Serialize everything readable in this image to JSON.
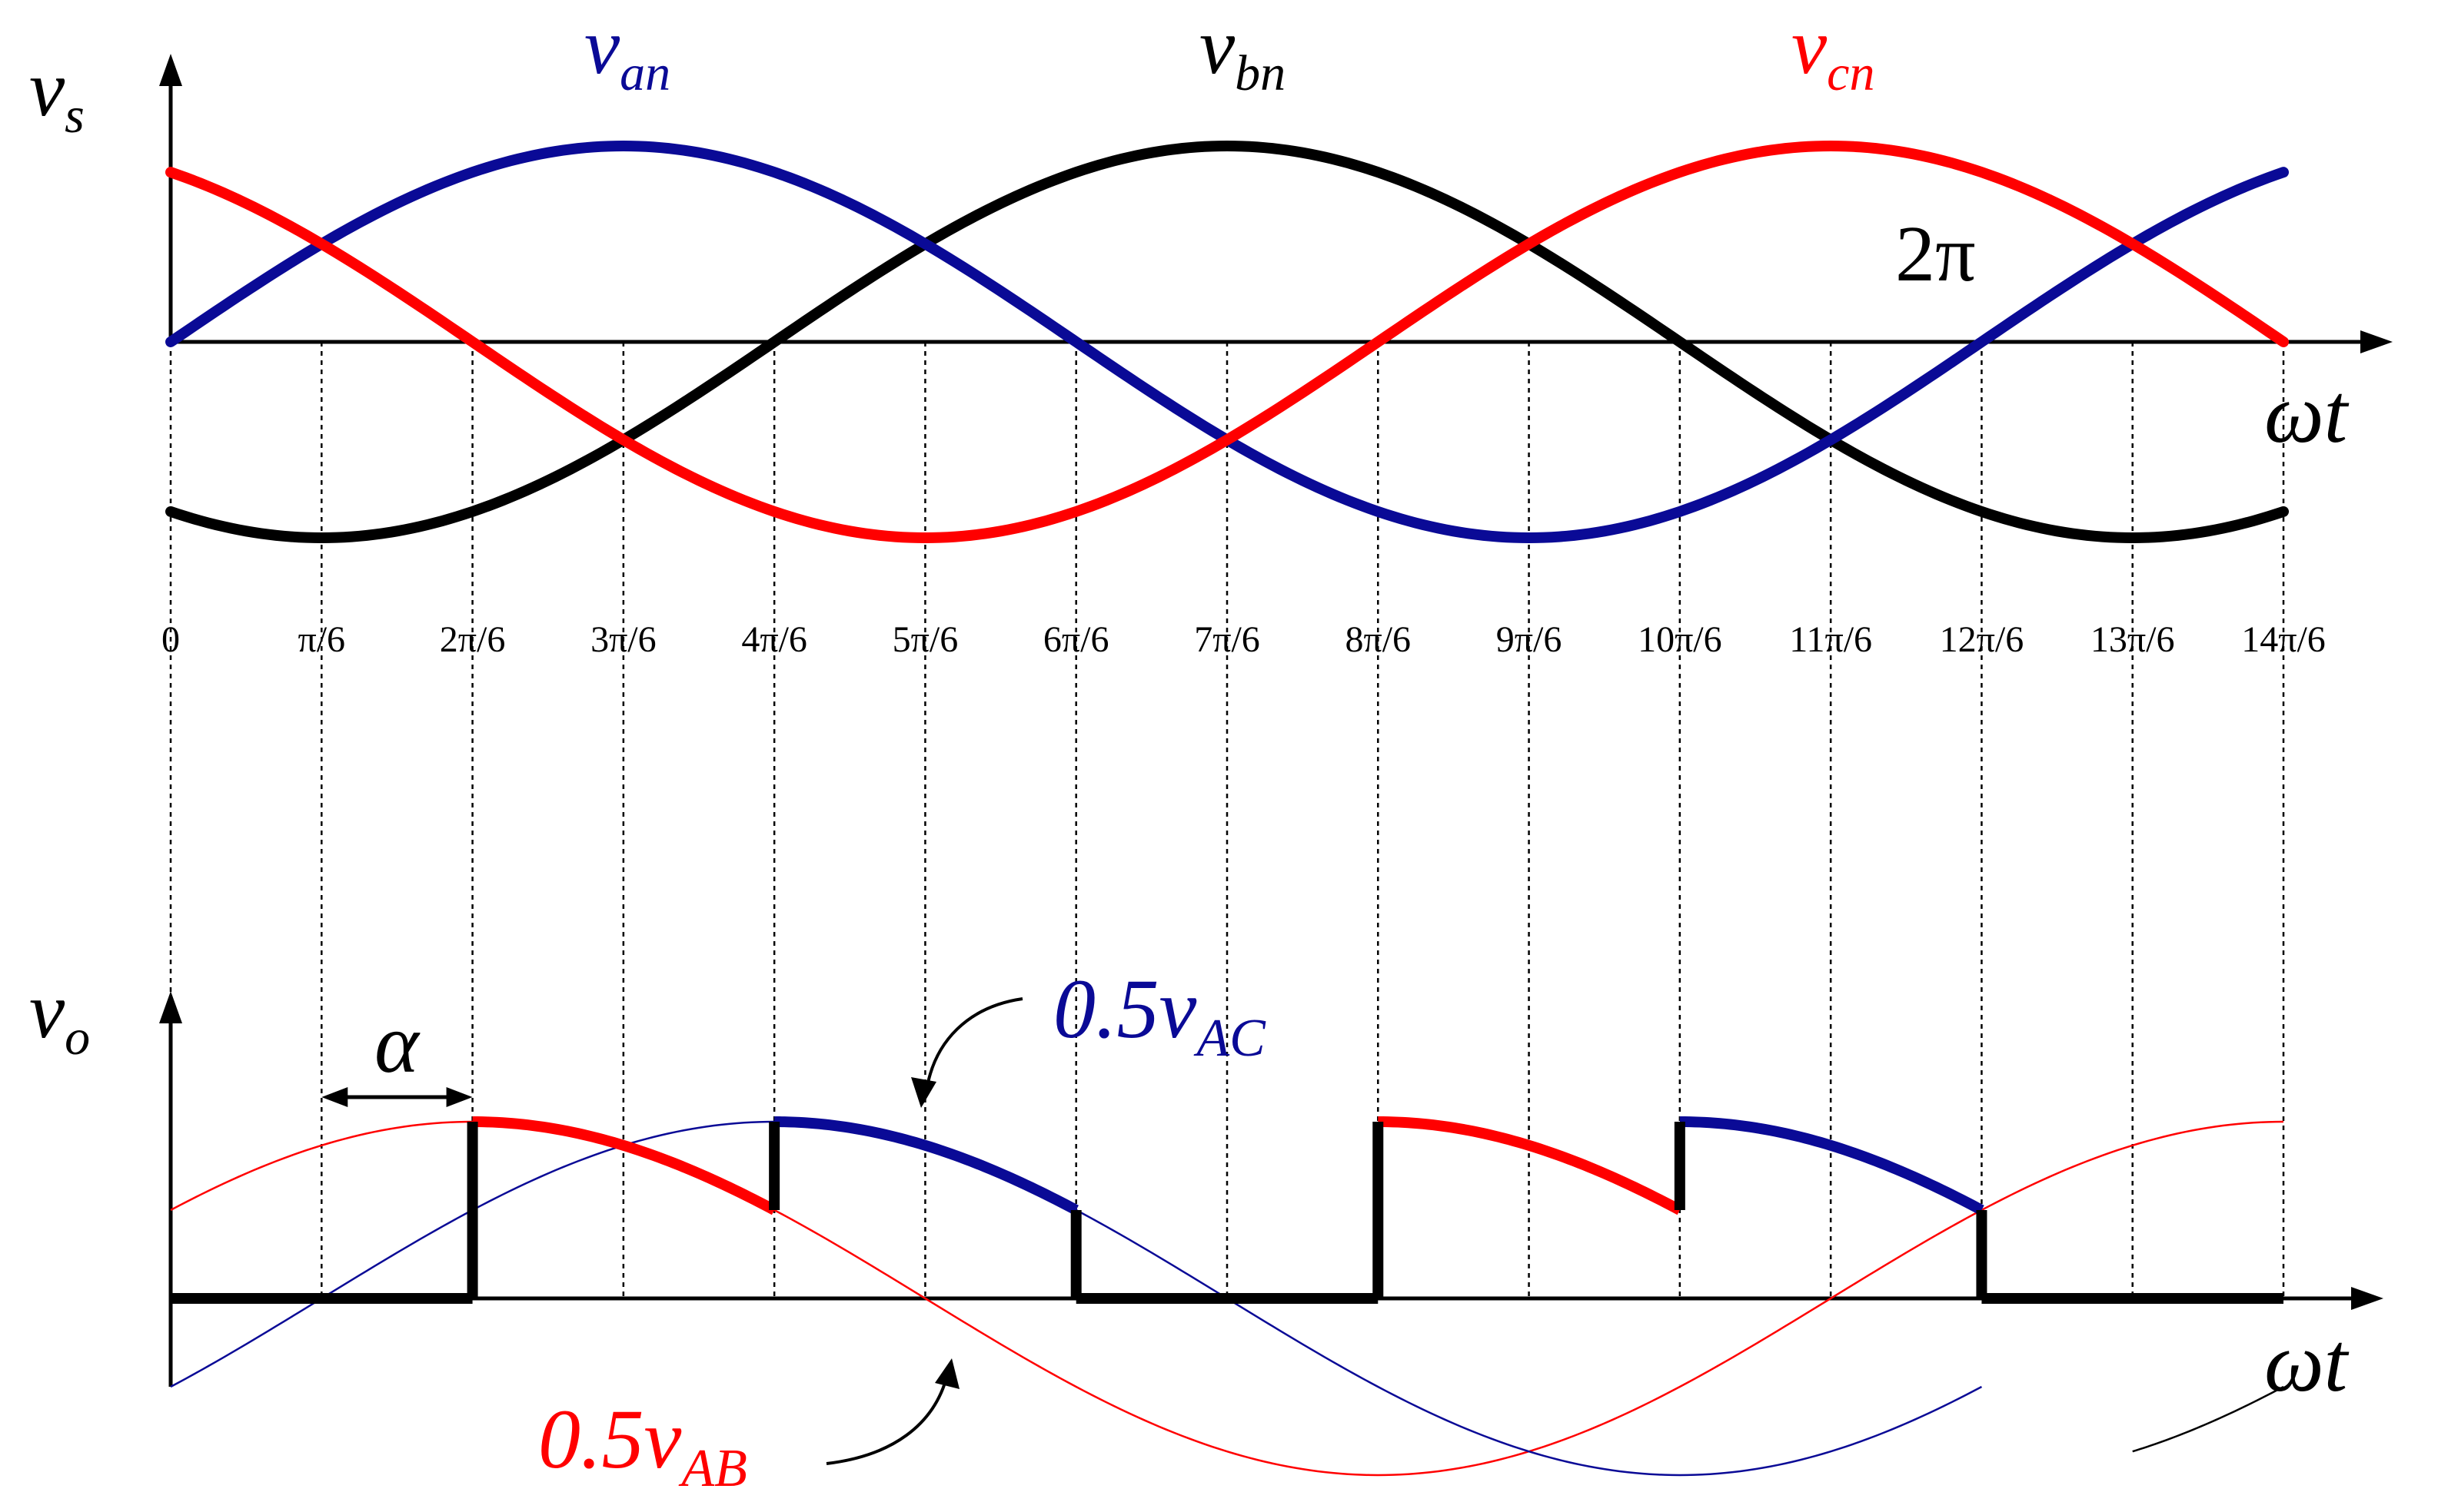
{
  "chart_data": [
    {
      "type": "line",
      "name": "source-phase-voltages",
      "ylabel": "v",
      "ylabel_sub": "s",
      "xlabel": "ωt",
      "x_unit": "pi/6",
      "x_range": [
        0,
        14
      ],
      "y_range": [
        -1,
        1
      ],
      "ticks": [
        "0",
        "π/6",
        "2π/6",
        "3π/6",
        "4π/6",
        "5π/6",
        "6π/6",
        "7π/6",
        "8π/6",
        "9π/6",
        "10π/6",
        "11π/6",
        "12π/6",
        "13π/6",
        "14π/6"
      ],
      "annotation": "2π",
      "series": [
        {
          "name": "van",
          "label": "v",
          "label_sub": "an",
          "color": "#0a0a96",
          "amplitude": 1,
          "phase_deg": 0
        },
        {
          "name": "vbn",
          "label": "v",
          "label_sub": "bn",
          "color": "#000000",
          "amplitude": 1,
          "phase_deg": -120
        },
        {
          "name": "vcn",
          "label": "v",
          "label_sub": "cn",
          "color": "#ff0000",
          "amplitude": 1,
          "phase_deg": 120
        }
      ]
    },
    {
      "type": "line",
      "name": "output-voltage",
      "ylabel": "v",
      "ylabel_sub": "o",
      "xlabel": "ωt",
      "x_unit": "pi/6",
      "x_range": [
        0,
        14
      ],
      "y_range": [
        -0.866,
        0.866
      ],
      "alpha_label": "α",
      "alpha_span": [
        1,
        2
      ],
      "series": [
        {
          "name": "0.5vAB",
          "label": "0.5v",
          "label_sub": "AB",
          "color": "#ff0000",
          "amplitude": 0.866,
          "phase_deg": 30
        },
        {
          "name": "0.5vAC",
          "label": "0.5v",
          "label_sub": "AC",
          "color": "#0a0a96",
          "amplitude": 0.866,
          "phase_deg": -30
        },
        {
          "name": "0.5vBC",
          "label": "",
          "label_sub": "",
          "color": "#000000",
          "amplitude": 0.866,
          "phase_deg": -90
        }
      ],
      "output_segments": [
        {
          "from": 0,
          "to": 2,
          "source": "zero"
        },
        {
          "from": 2,
          "to": 4,
          "source": "0.5vAB",
          "sign": 1
        },
        {
          "from": 4,
          "to": 6,
          "source": "0.5vAC",
          "sign": 1
        },
        {
          "from": 6,
          "to": 8,
          "source": "zero"
        },
        {
          "from": 8,
          "to": 10,
          "source": "0.5vAB",
          "sign": -1
        },
        {
          "from": 10,
          "to": 12,
          "source": "0.5vAC",
          "sign": -1
        },
        {
          "from": 12,
          "to": 14,
          "source": "zero"
        }
      ]
    }
  ]
}
